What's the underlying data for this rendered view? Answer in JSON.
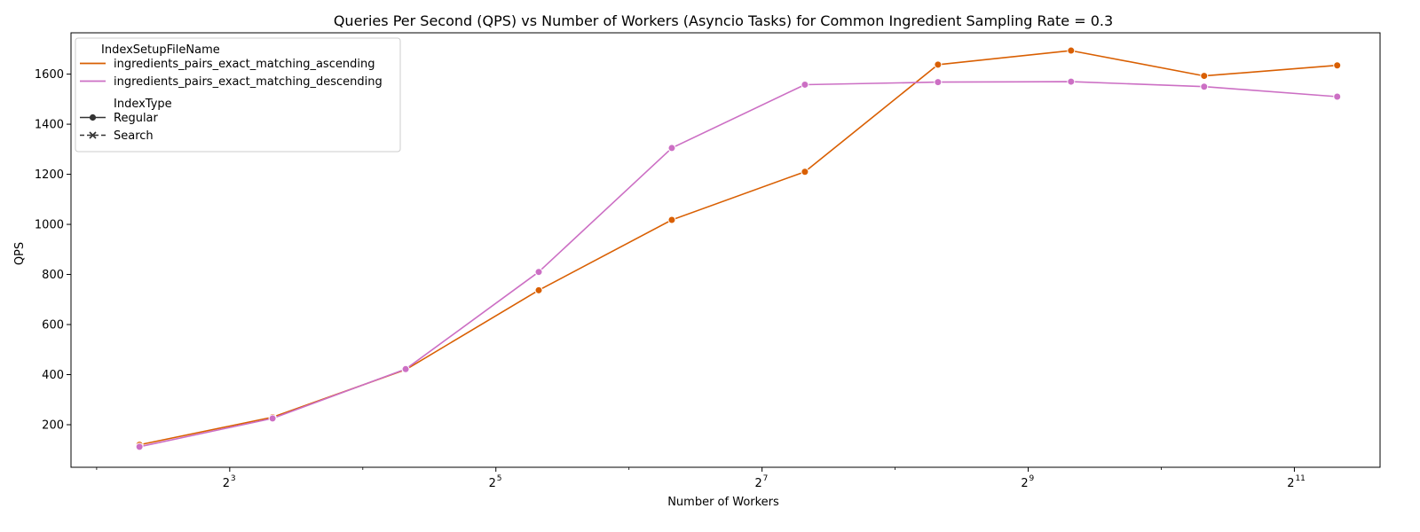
{
  "chart_data": {
    "type": "line",
    "title": "Queries Per Second (QPS) vs Number of Workers (Asyncio Tasks) for Common Ingredient Sampling Rate = 0.3",
    "xlabel": "Number of Workers",
    "ylabel": "QPS",
    "x_scale": "log2",
    "x_ticks": [
      {
        "base": "2",
        "exp": "3",
        "value": 8
      },
      {
        "base": "2",
        "exp": "5",
        "value": 32
      },
      {
        "base": "2",
        "exp": "7",
        "value": 128
      },
      {
        "base": "2",
        "exp": "9",
        "value": 512
      },
      {
        "base": "2",
        "exp": "11",
        "value": 2048
      }
    ],
    "xlim": [
      3.5,
      3200
    ],
    "y_ticks": [
      200,
      400,
      600,
      800,
      1000,
      1200,
      1400,
      1600
    ],
    "ylim": [
      30,
      1765
    ],
    "grid": false,
    "legend_placement": "top-left",
    "legend": {
      "hue_title": "IndexSetupFileName",
      "style_title": "IndexType",
      "style_entries": [
        {
          "label": "Regular",
          "marker": "circle",
          "dash": "solid"
        },
        {
          "label": "Search",
          "marker": "x",
          "dash": "dashed"
        }
      ]
    },
    "series": [
      {
        "name": "ingredients_pairs_exact_matching_ascending",
        "color": "#d95f02",
        "x": [
          5,
          10,
          20,
          40,
          80,
          160,
          320,
          640,
          1280,
          2560
        ],
        "y": [
          120,
          230,
          420,
          737,
          1018,
          1210,
          1638,
          1694,
          1593,
          1635
        ]
      },
      {
        "name": "ingredients_pairs_exact_matching_descending",
        "color": "#cc6fc4",
        "x": [
          5,
          10,
          20,
          40,
          80,
          160,
          320,
          640,
          1280,
          2560
        ],
        "y": [
          112,
          225,
          422,
          810,
          1305,
          1558,
          1568,
          1570,
          1550,
          1510
        ]
      }
    ]
  }
}
